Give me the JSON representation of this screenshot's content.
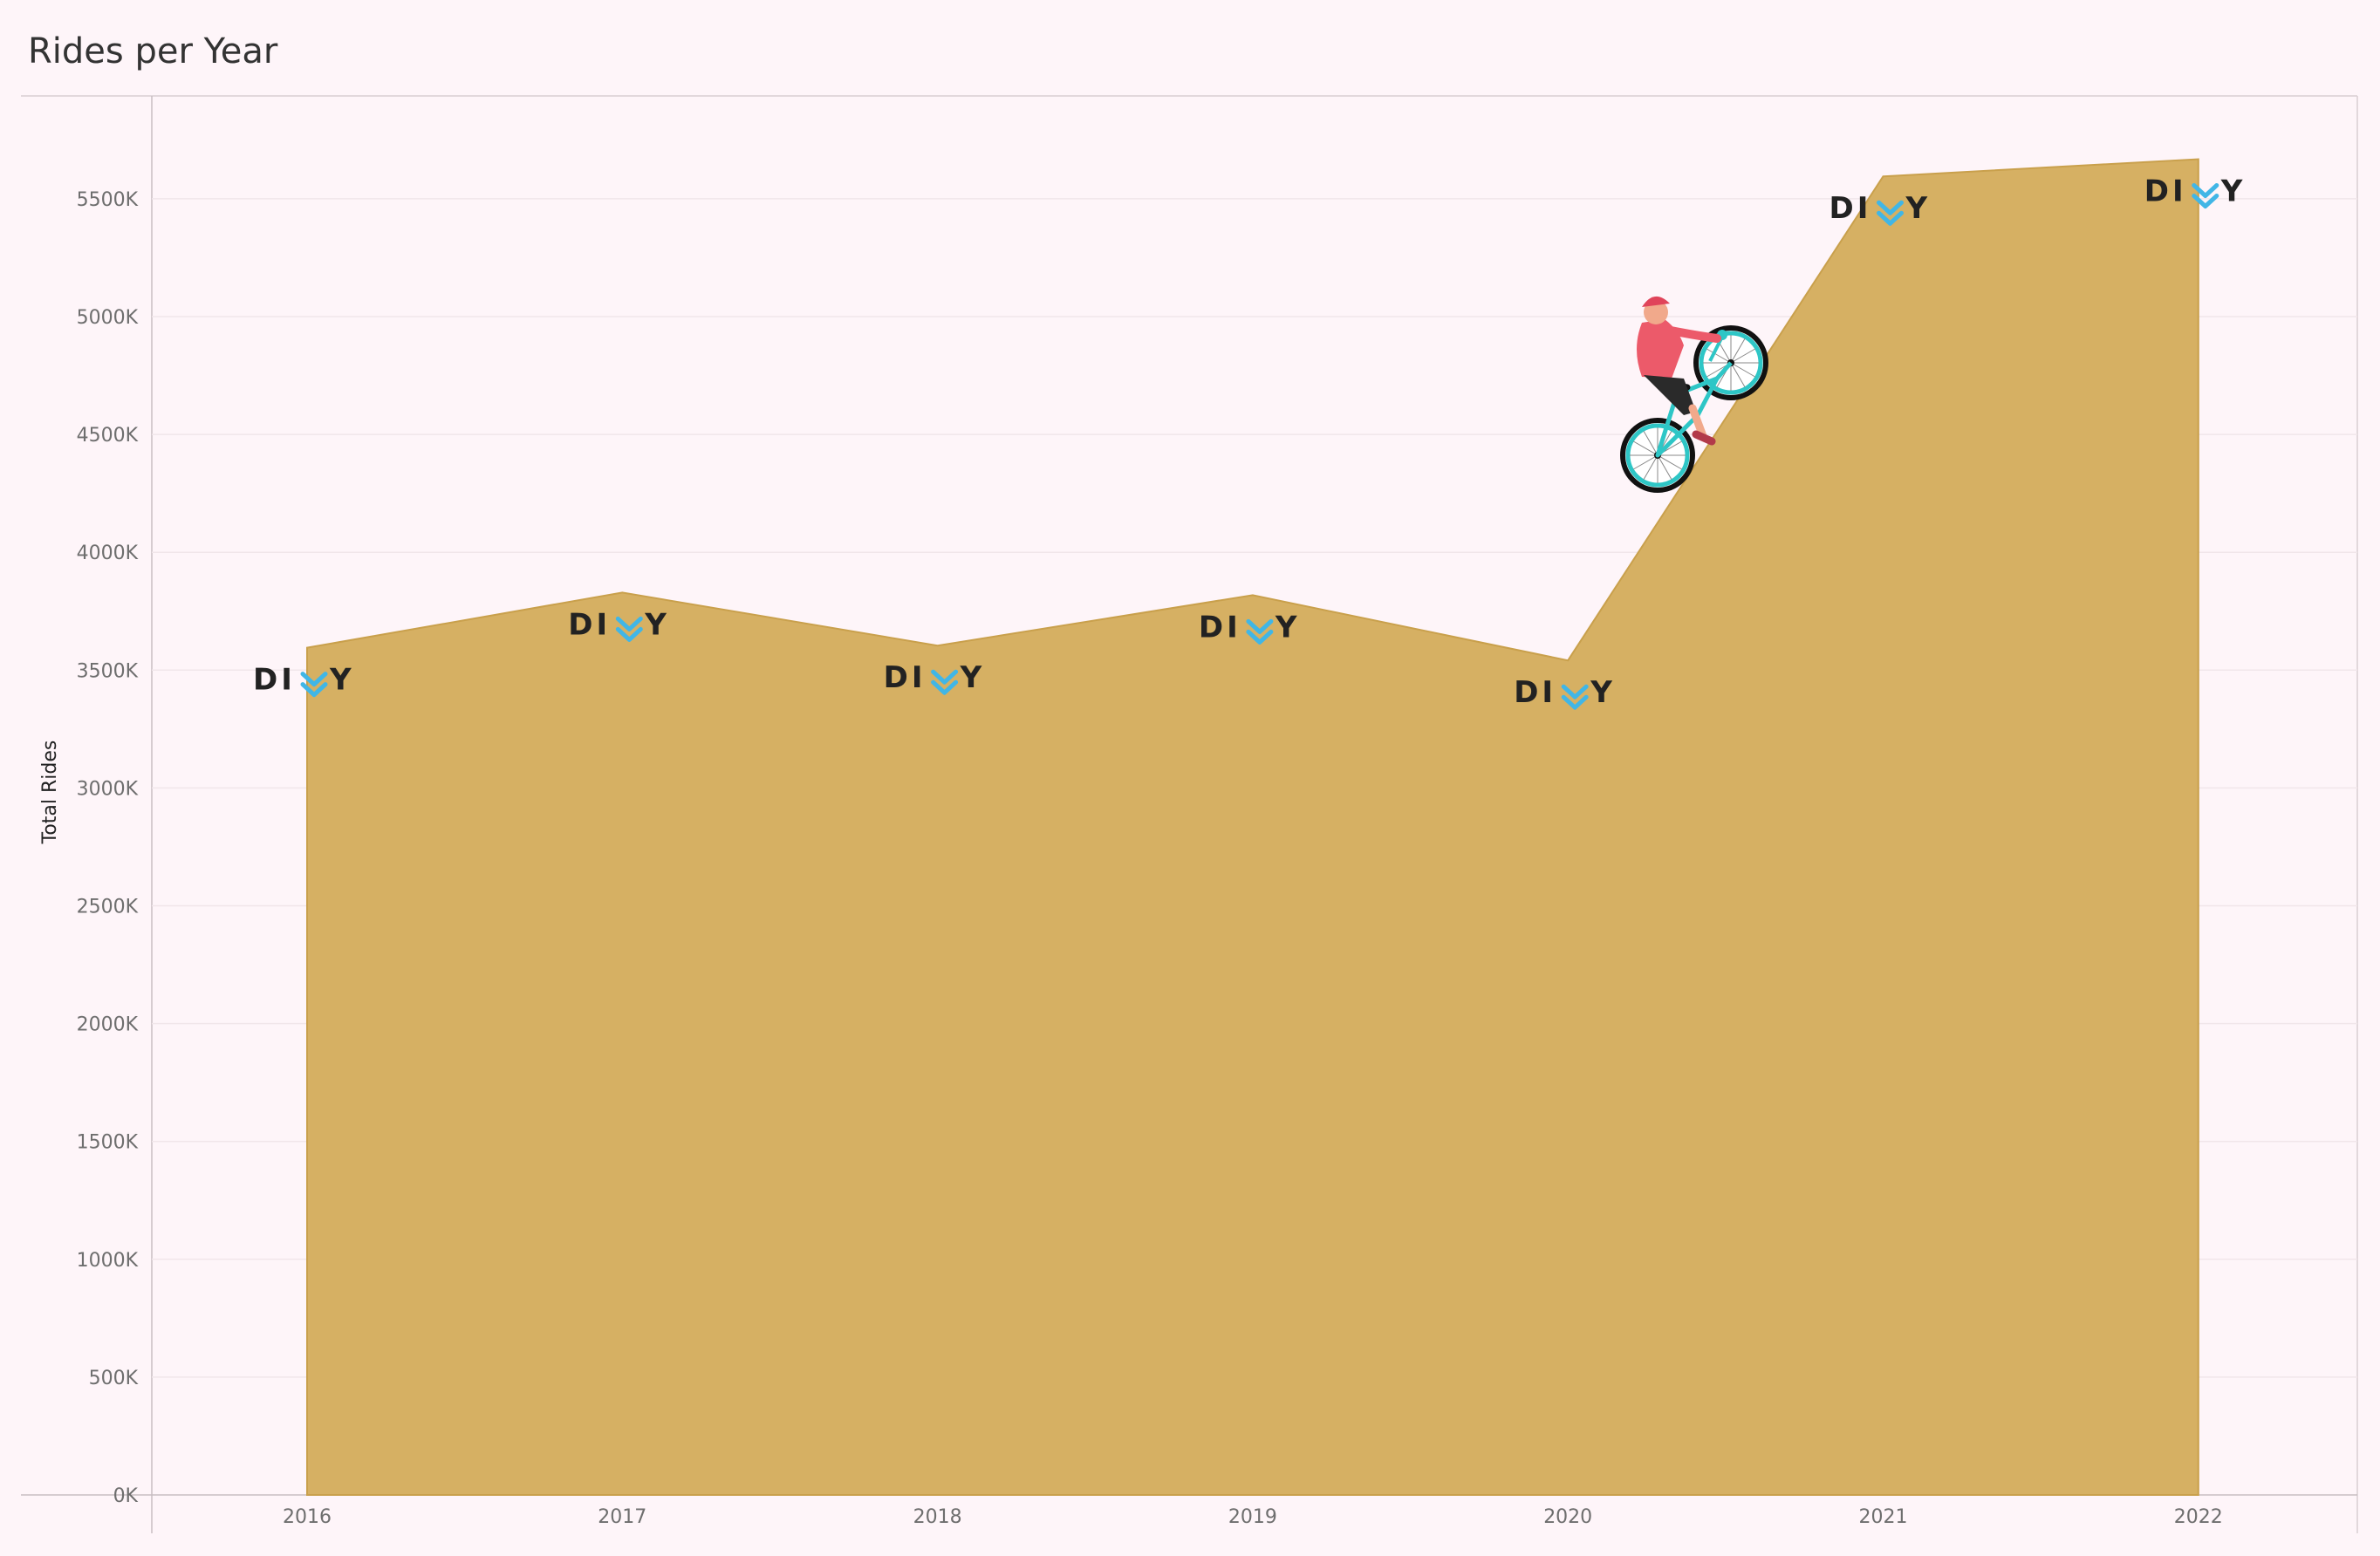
{
  "chart_data": {
    "type": "area",
    "title": "Rides per Year",
    "xlabel": "",
    "ylabel": "Total Rides",
    "categories": [
      "2016",
      "2017",
      "2018",
      "2019",
      "2020",
      "2021",
      "2022"
    ],
    "series": [
      {
        "values": [
          3595,
          3829,
          3604,
          3818,
          3541,
          5595,
          5668
        ]
      }
    ],
    "ylim": [
      0,
      5900
    ],
    "yticks": [
      0,
      500,
      1000,
      1500,
      2000,
      2500,
      3000,
      3500,
      4000,
      4500,
      5000,
      5500
    ],
    "ytick_labels": [
      "0K",
      "500K",
      "1000K",
      "1500K",
      "2000K",
      "2500K",
      "3000K",
      "3500K",
      "4000K",
      "4500K",
      "5000K",
      "5500K"
    ],
    "grid": true,
    "colors": {
      "area_fill": "#d6b063",
      "area_stroke": "#c9a04c",
      "background": "#fef5f9",
      "gridline": "#f1e6ea",
      "logo_dark": "#222222",
      "logo_accent": "#41b6e6"
    },
    "point_marker": {
      "logo_text_left": "DI",
      "logo_text_right": "Y",
      "icon": "divvy-chevron-icon"
    },
    "decoration": {
      "icon": "cyclist-illustration"
    }
  }
}
